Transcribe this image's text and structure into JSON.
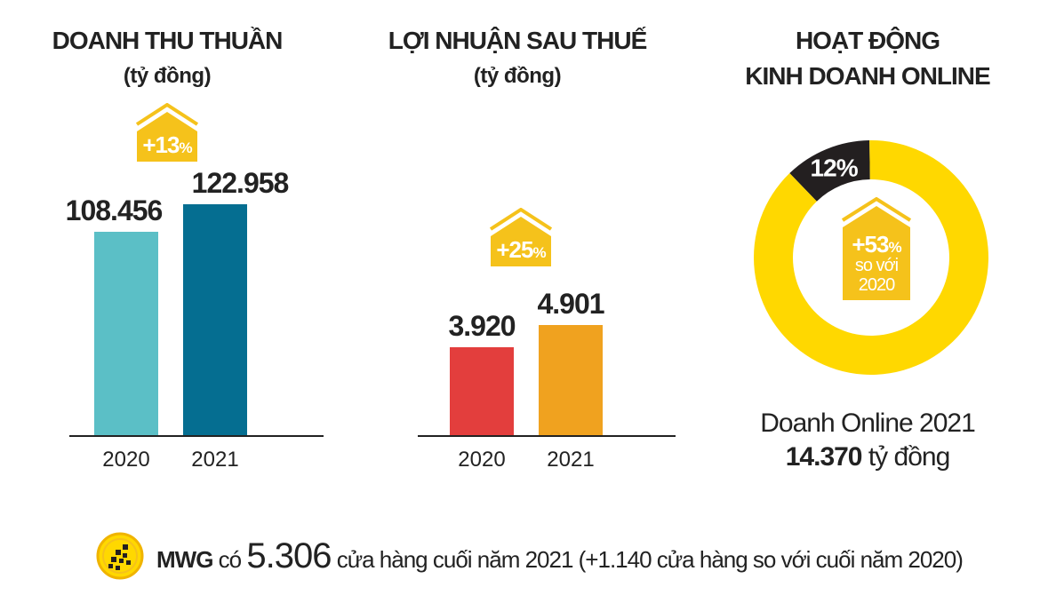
{
  "revenue": {
    "title": "DOANH THU THUẦN",
    "unit": "(tỷ đồng)",
    "growth": "+13",
    "growth_unit": "%"
  },
  "profit": {
    "title": "LỢI NHUẬN SAU THUẾ",
    "unit": "(tỷ đồng)",
    "growth": "+25",
    "growth_unit": "%"
  },
  "online": {
    "title_line1": "HOẠT ĐỘNG",
    "title_line2": "KINH DOANH ONLINE",
    "share_label": "12%",
    "growth": "+53",
    "growth_unit": "%",
    "growth_note1": "so với",
    "growth_note2": "2020",
    "caption_line1": "Doanh Online 2021",
    "caption_value": "14.370",
    "caption_unit": "tỷ đồng"
  },
  "footer": {
    "brand": "MWG",
    "text_before": "có",
    "store_count": "5.306",
    "text_after": "cửa hàng cuối năm 2021 (+1.140 cửa hàng so với cuối năm 2020)"
  },
  "colors": {
    "revenue_2020": "#5bbfc6",
    "revenue_2021": "#056e91",
    "profit_2020": "#e33e3d",
    "profit_2021": "#f0a21f",
    "badge": "#f5c21b",
    "donut_main": "#ffd800",
    "donut_share": "#231f20"
  },
  "chart_data": [
    {
      "type": "bar",
      "title": "DOANH THU THUẦN",
      "subtitle": "(tỷ đồng)",
      "categories": [
        "2020",
        "2021"
      ],
      "values": [
        108456,
        122958
      ],
      "value_labels": [
        "108.456",
        "122.958"
      ]
    },
    {
      "type": "bar",
      "title": "LỢI NHUẬN SAU THUẾ",
      "subtitle": "(tỷ đồng)",
      "categories": [
        "2020",
        "2021"
      ],
      "values": [
        3920,
        4901
      ],
      "value_labels": [
        "3.920",
        "4.901"
      ]
    },
    {
      "type": "pie",
      "title": "HOẠT ĐỘNG KINH DOANH ONLINE",
      "slices": [
        {
          "label": "12%",
          "value": 12
        },
        {
          "label": "",
          "value": 88
        }
      ]
    }
  ]
}
